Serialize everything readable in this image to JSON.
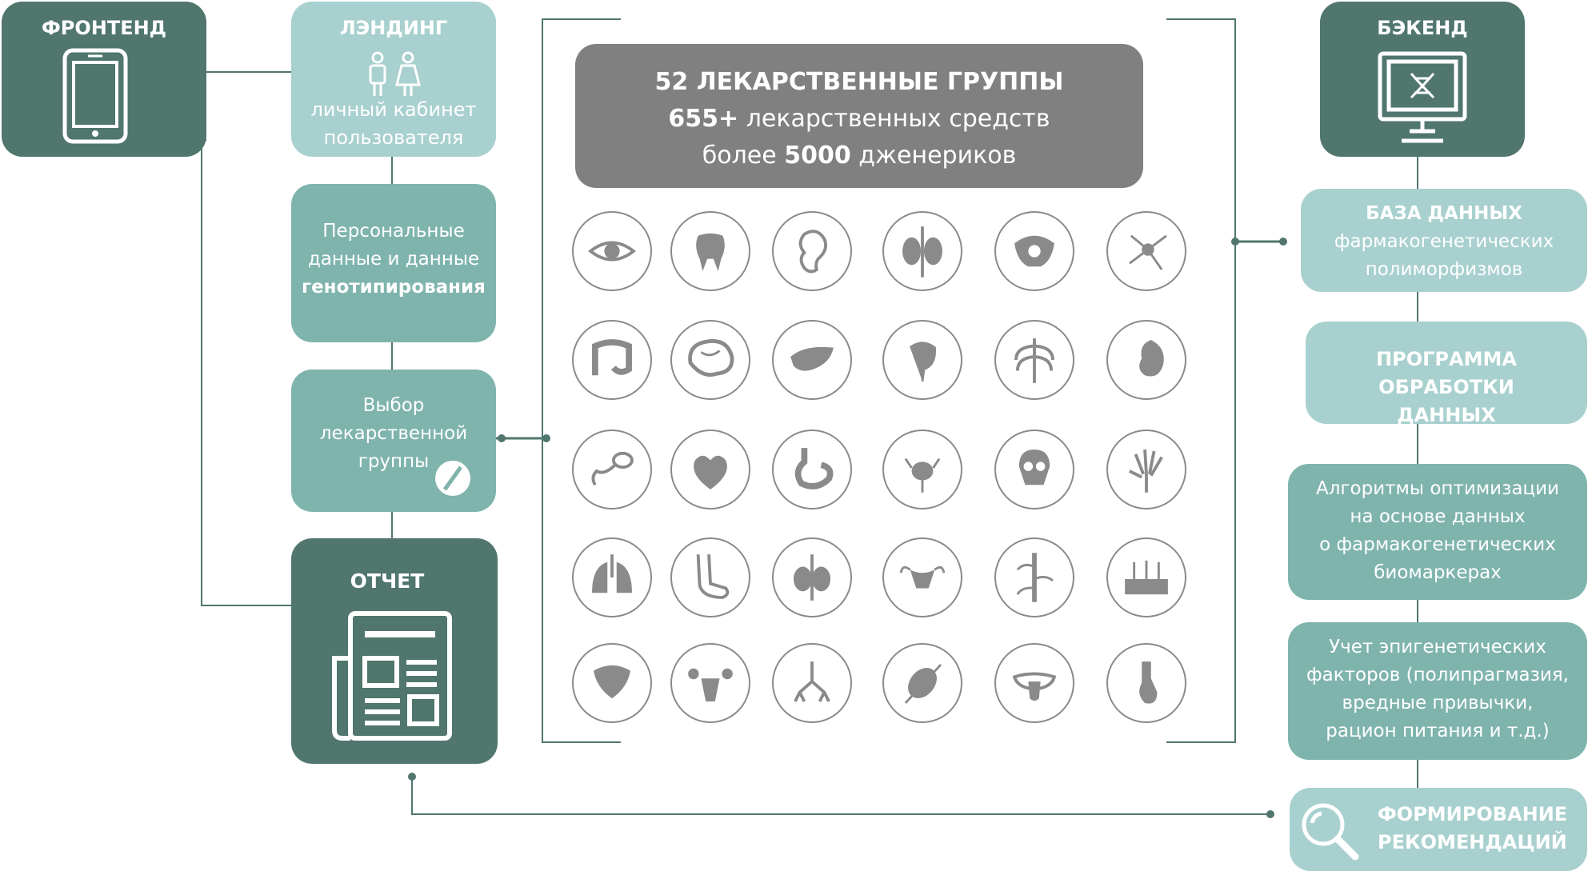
{
  "frontend": {
    "title": "ФРОНТЕНД",
    "icon": "tablet-icon"
  },
  "landing": {
    "title": "ЛЭНДИНГ",
    "line1": "личный кабинет",
    "line2": "пользователя",
    "icon": "user-pair-icon"
  },
  "personal": {
    "line1": "Персональные",
    "line2": "данные и данные",
    "line3": "генотипирования"
  },
  "choice": {
    "line1": "Выбор",
    "line2": "лекарственной",
    "line3": "группы",
    "icon": "pill-icon"
  },
  "report": {
    "title": "ОТЧЕТ",
    "icon": "newspaper-icon"
  },
  "stats": {
    "line1": "52 ЛЕКАРСТВЕННЫЕ ГРУППЫ",
    "line2_bold": "655+",
    "line2_rest": " лекарственных средств",
    "line3_pre": "более ",
    "line3_bold": "5000",
    "line3_rest": " дженериков"
  },
  "backend": {
    "title": "БЭКЕНД",
    "icon": "monitor-dna-icon"
  },
  "database": {
    "title": "БАЗА ДАННЫХ",
    "line1": "фармакогенетических",
    "line2": "полиморфизмов"
  },
  "program": {
    "line1": "ПРОГРАММА",
    "line2": "ОБРАБОТКИ",
    "line3": "ДАННЫХ"
  },
  "algorithms": {
    "line1": "Алгоритмы оптимизации",
    "line2": "на основе данных",
    "line3": "о фармакогенетических",
    "line4": "биомаркерах"
  },
  "epigenetic": {
    "line1": "Учет эпигенетических",
    "line2": "факторов (полипрагмазия,",
    "line3": "вредные привычки,",
    "line4": "рацион питания и т.д.)"
  },
  "recommend": {
    "line1": "ФОРМИРОВАНИЕ",
    "line2": "РЕКОМЕНДАЦИЙ",
    "icon": "magnifier-icon"
  },
  "organs": [
    [
      "eye-icon",
      "tooth-icon",
      "ear-icon",
      "kidneys-icon",
      "pelvis-icon",
      "neuron-icon"
    ],
    [
      "intestine-icon",
      "brain-icon",
      "liver-icon",
      "bladder-icon",
      "ribcage-icon",
      "kidney-icon"
    ],
    [
      "sperm-icon",
      "heart-icon",
      "stomach-icon",
      "prostate-icon",
      "skull-icon",
      "hand-bones-icon"
    ],
    [
      "lungs-icon",
      "foot-icon",
      "thyroid-icon",
      "uterus-icon",
      "nerves-icon",
      "skin-icon"
    ],
    [
      "pancreas-icon",
      "ovaries-icon",
      "bronchi-icon",
      "muscle-icon",
      "tongue-icon",
      "esophagus-icon"
    ]
  ],
  "colors": {
    "dark": "#50766e",
    "mid": "#7fb4ad",
    "light": "#a8d0cf",
    "gray": "#808080",
    "icon": "#8a8a8a"
  }
}
